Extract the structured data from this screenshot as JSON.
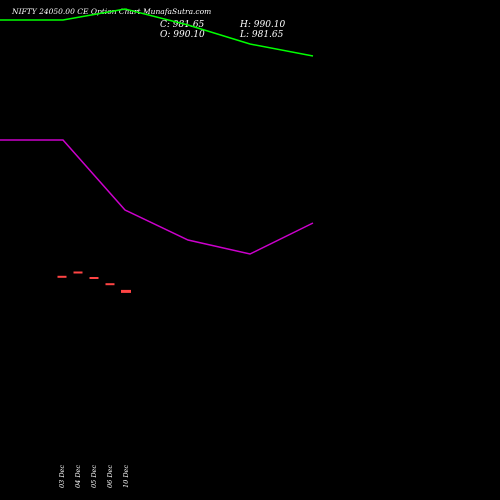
{
  "chart_data": {
    "type": "line",
    "title": "NIFTY 24050.00  CE Option  Chart MunafaSutra.com",
    "ohlc": {
      "close": "C: 981.65",
      "high": "H: 990.10",
      "open": "O: 990.10",
      "low": "L: 981.65"
    },
    "x_tick_labels": [
      "03 Dec",
      "04 Dec",
      "05 Dec",
      "06 Dec",
      "10 Dec"
    ],
    "series": [
      {
        "color": "#00ff00",
        "values": [
          980,
          980,
          991,
          975,
          956,
          944
        ]
      },
      {
        "color": "#cc00cc",
        "values": [
          860,
          860,
          790,
          760,
          746,
          777
        ]
      }
    ],
    "y_range": [
      500,
      1000
    ],
    "candles": {
      "color": "#ff4444",
      "values": [
        990.1,
        1000.5,
        987.0,
        972.0,
        955.5
      ]
    },
    "candle_y_range": [
      860,
      1080
    ],
    "grid": false,
    "legend": "none"
  }
}
